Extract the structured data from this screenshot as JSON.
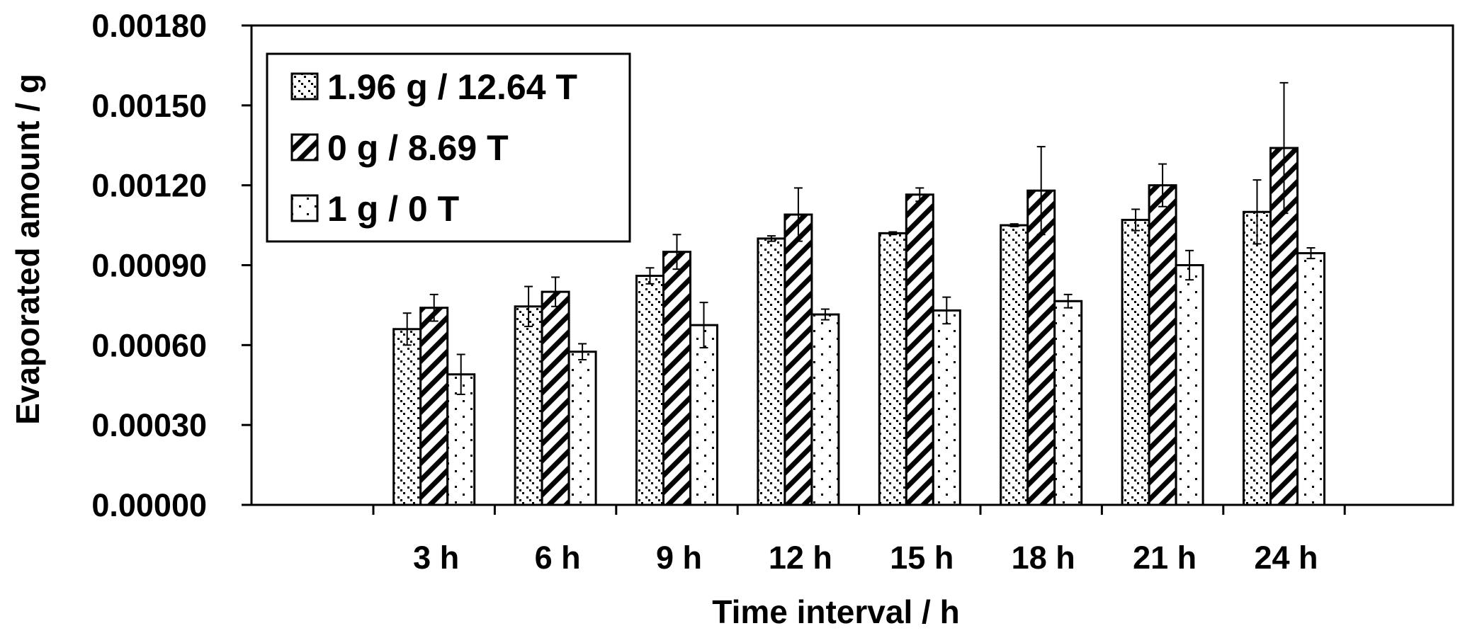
{
  "chart_data": {
    "type": "bar",
    "title": "",
    "xlabel": "Time interval / h",
    "ylabel": "Evaporated amount / g",
    "categories": [
      "3 h",
      "6 h",
      "9 h",
      "12 h",
      "15 h",
      "18 h",
      "21 h",
      "24 h"
    ],
    "ylim": [
      0,
      0.0018
    ],
    "yticks": [
      0,
      0.0003,
      0.0006,
      0.0009,
      0.0012,
      0.0015,
      0.0018
    ],
    "ytick_labels": [
      "0.00000",
      "0.00030",
      "0.00060",
      "0.00090",
      "0.00120",
      "0.00150",
      "0.00180"
    ],
    "grid": false,
    "legend_position": "top-left",
    "series": [
      {
        "name": "1.96 g / 12.64 T",
        "pattern": "dotted-backslash",
        "values": [
          0.00066,
          0.000745,
          0.00086,
          0.001,
          0.00102,
          0.00105,
          0.00107,
          0.0011
        ],
        "errors": [
          6e-05,
          7.5e-05,
          3e-05,
          1e-05,
          5e-06,
          5e-06,
          4e-05,
          0.00012
        ]
      },
      {
        "name": "0 g / 8.69 T",
        "pattern": "bold-diagonal",
        "values": [
          0.00074,
          0.0008,
          0.00095,
          0.00109,
          0.001165,
          0.00118,
          0.0012,
          0.00134
        ],
        "errors": [
          5e-05,
          5.5e-05,
          6.5e-05,
          0.0001,
          2.5e-05,
          0.000165,
          8e-05,
          0.000245
        ]
      },
      {
        "name": "1 g / 0 T",
        "pattern": "sparse-dots",
        "values": [
          0.00049,
          0.000575,
          0.000675,
          0.000715,
          0.00073,
          0.000765,
          0.0009,
          0.000945
        ],
        "errors": [
          7.5e-05,
          3e-05,
          8.5e-05,
          2e-05,
          5e-05,
          2.5e-05,
          5.5e-05,
          2e-05
        ]
      }
    ],
    "colors": {
      "axis": "#000000",
      "bar_fill": "#ffffff"
    }
  }
}
